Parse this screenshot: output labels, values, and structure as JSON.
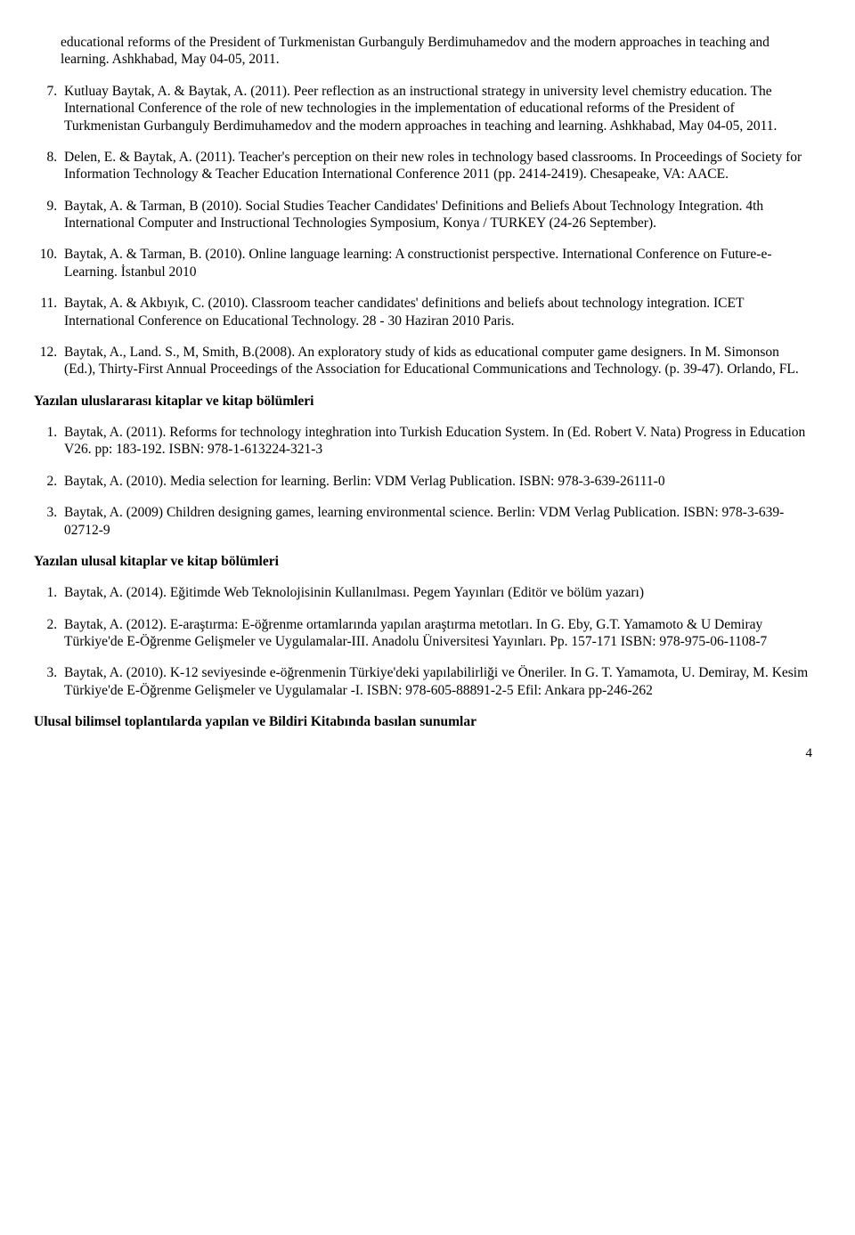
{
  "continued_entry": "educational reforms of the President of Turkmenistan Gurbanguly Berdimuhamedov and the modern approaches in teaching and learning. Ashkhabad, May 04-05, 2011.",
  "section1_refs": [
    "Kutluay Baytak, A. & Baytak, A. (2011). Peer reflection as an instructional strategy in university level chemistry education. The International Conference of the role of new technologies in the implementation of educational reforms of the President of Turkmenistan Gurbanguly Berdimuhamedov and the modern approaches in teaching and learning. Ashkhabad, May 04-05, 2011.",
    "Delen, E. & Baytak, A. (2011). Teacher's perception on their new roles in technology based classrooms. In Proceedings of Society for Information Technology & Teacher Education International Conference 2011 (pp. 2414-2419). Chesapeake, VA: AACE.",
    "Baytak, A. & Tarman, B (2010). Social Studies Teacher Candidates' Definitions and Beliefs About Technology Integration. 4th International Computer and Instructional Technologies Symposium, Konya / TURKEY (24-26 September).",
    "Baytak, A. & Tarman, B. (2010). Online language learning: A constructionist perspective. International Conference on Future-e-Learning. İstanbul 2010",
    "Baytak, A. & Akbıyık, C. (2010). Classroom teacher candidates' definitions and beliefs about technology integration. ICET International Conference on Educational Technology. 28 - 30 Haziran 2010 Paris.",
    "Baytak, A., Land. S., M, Smith, B.(2008). An exploratory study of kids as educational computer game designers. In M. Simonson (Ed.), Thirty-First Annual Proceedings of the Association for Educational Communications and Technology. (p. 39-47). Orlando, FL."
  ],
  "section2_heading": "Yazılan uluslararası kitaplar ve kitap bölümleri",
  "section2_refs": [
    "Baytak, A. (2011). Reforms for technology integhration into Turkish Education System. In (Ed. Robert V. Nata) Progress in Education V26. pp: 183-192. ISBN: 978-1-613224-321-3",
    "Baytak, A. (2010). Media selection for learning. Berlin: VDM Verlag Publication. ISBN: 978-3-639-26111-0",
    "Baytak, A. (2009) Children designing games, learning environmental science. Berlin: VDM Verlag Publication. ISBN: 978-3-639-02712-9"
  ],
  "section3_heading": "Yazılan ulusal kitaplar ve kitap bölümleri",
  "section3_refs": [
    "Baytak, A. (2014). Eğitimde Web Teknolojisinin Kullanılması. Pegem Yayınları (Editör ve bölüm yazarı)",
    "Baytak, A. (2012). E-araştırma: E-öğrenme ortamlarında yapılan araştırma metotları. In G. Eby, G.T. Yamamoto & U Demiray Türkiye'de E-Öğrenme Gelişmeler ve Uygulamalar-III. Anadolu Üniversitesi Yayınları. Pp. 157-171 ISBN: 978-975-06-1108-7",
    "Baytak, A. (2010). K-12 seviyesinde e-öğrenmenin Türkiye'deki yapılabilirliği ve Öneriler. In G. T. Yamamota, U. Demiray, M. Kesim Türkiye'de E-Öğrenme Gelişmeler ve Uygulamalar -I. ISBN: 978-605-88891-2-5 Efil: Ankara pp-246-262"
  ],
  "section4_heading": "Ulusal bilimsel toplantılarda yapılan ve Bildiri Kitabında basılan sunumlar",
  "page_number": "4",
  "list_starts": {
    "section1": 7,
    "section2": 1,
    "section3": 1
  }
}
